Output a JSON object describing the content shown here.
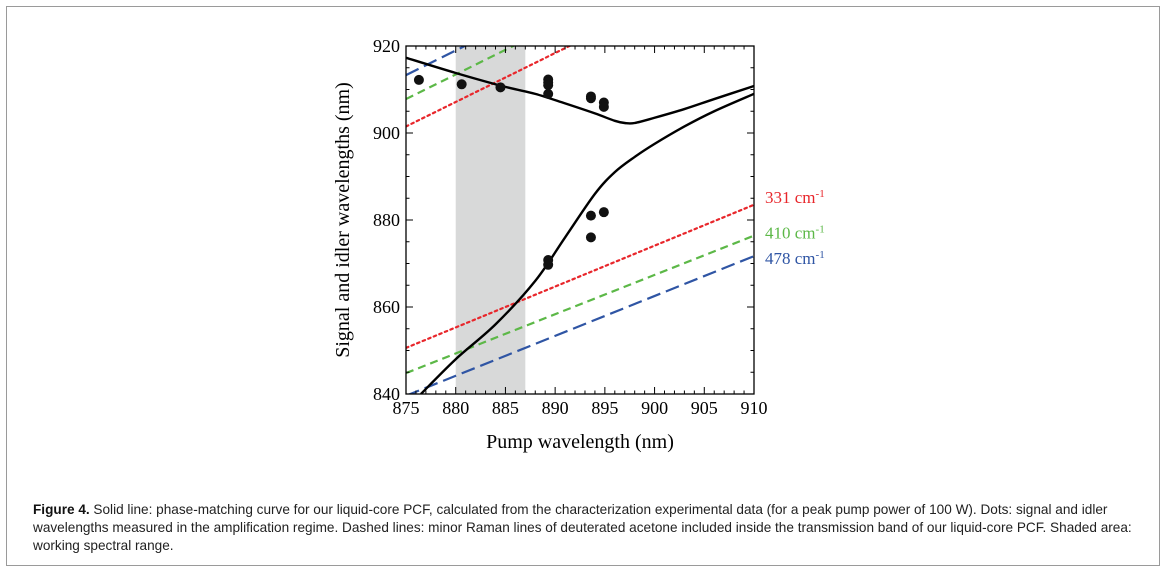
{
  "chart_data": {
    "type": "line",
    "xlabel": "Pump wavelength (nm)",
    "ylabel": "Signal and idler wavelengths (nm)",
    "xlim": [
      875,
      910
    ],
    "ylim": [
      840,
      920
    ],
    "xticks": [
      875,
      880,
      885,
      890,
      895,
      900,
      905,
      910
    ],
    "yticks": [
      840,
      860,
      880,
      900,
      920
    ],
    "shaded_region": {
      "x": [
        880,
        887
      ],
      "color": "#d8d9d9"
    },
    "phase_matching_curves": [
      {
        "branch": "signal",
        "color": "#000000",
        "x": [
          875,
          880,
          885,
          888,
          891,
          894,
          896,
          897,
          898,
          900,
          903,
          906,
          910
        ],
        "y": [
          917.3,
          913.8,
          910.6,
          909.0,
          906.8,
          904.5,
          902.8,
          902.3,
          902.3,
          903.5,
          905.5,
          907.8,
          910.8
        ]
      },
      {
        "branch": "idler",
        "color": "#000000",
        "x": [
          876.5,
          880,
          884,
          888,
          891,
          894,
          896,
          898,
          900,
          903,
          906,
          910
        ],
        "y": [
          840,
          848,
          856,
          866,
          876,
          886,
          891,
          894.5,
          897.5,
          901.5,
          905,
          909
        ]
      }
    ],
    "measured_points": {
      "color": "#111111",
      "points": [
        [
          876.3,
          912.2
        ],
        [
          880.6,
          911.2
        ],
        [
          884.5,
          910.5
        ],
        [
          889.3,
          912.3
        ],
        [
          889.3,
          911.6
        ],
        [
          889.3,
          911.0
        ],
        [
          889.3,
          909.0
        ],
        [
          893.6,
          908.4
        ],
        [
          893.6,
          908.0
        ],
        [
          894.9,
          907.0
        ],
        [
          894.9,
          906.0
        ],
        [
          889.3,
          870.8
        ],
        [
          889.3,
          869.7
        ],
        [
          893.6,
          881.0
        ],
        [
          893.6,
          876.0
        ],
        [
          894.9,
          881.8
        ]
      ]
    },
    "raman_lines": [
      {
        "label": "331 cm",
        "superscript": "-1",
        "color": "#e8262b",
        "style": "dotted",
        "x": [
          875,
          910
        ],
        "y": [
          850.6,
          883.5
        ]
      },
      {
        "label": "410 cm",
        "superscript": "-1",
        "color": "#5cb847",
        "style": "short-dash",
        "x": [
          875,
          910
        ],
        "y": [
          844.8,
          876.4
        ]
      },
      {
        "label": "478 cm",
        "superscript": "-1",
        "color": "#2f55a4",
        "style": "long-dash",
        "x": [
          875,
          910
        ],
        "y": [
          839.6,
          871.7
        ]
      }
    ],
    "raman_lines_upper": [
      {
        "color": "#e8262b",
        "style": "dotted",
        "x": [
          875,
          910
        ],
        "y": [
          901.5,
          940.9
        ]
      },
      {
        "color": "#5cb847",
        "style": "short-dash",
        "x": [
          875,
          910
        ],
        "y": [
          907.8,
          947.4
        ]
      },
      {
        "color": "#2f55a4",
        "style": "long-dash",
        "x": [
          875,
          910
        ],
        "y": [
          913.3,
          953.0
        ]
      }
    ]
  },
  "caption": {
    "label": "Figure 4.",
    "text": " Solid line: phase-matching curve for our liquid-core PCF, calculated from the characterization experimental data (for a peak pump power of 100 W). Dots: signal and idler wavelengths measured in the amplification regime. Dashed lines: minor Raman lines of deuterated acetone included inside the transmission band of our liquid-core PCF. Shaded area: working spectral range."
  }
}
